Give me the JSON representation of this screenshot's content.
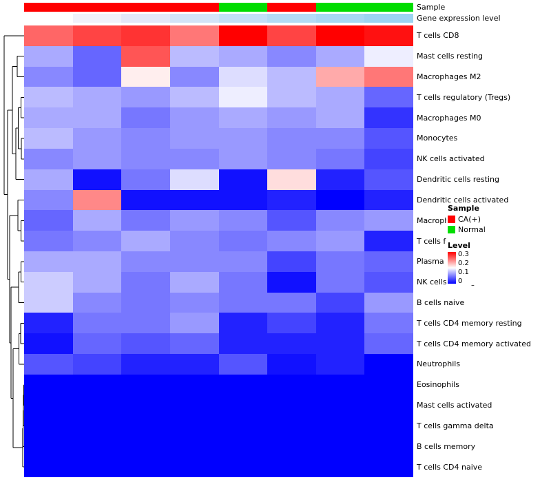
{
  "annotations": {
    "sample_label": "Sample",
    "expr_label": "Gene expression level",
    "sample_groups": [
      "CA(+)",
      "CA(+)",
      "CA(+)",
      "CA(+)",
      "Normal",
      "CA(+)",
      "Normal",
      "Normal"
    ],
    "sample_colors": {
      "CA(+)": "#FF0000",
      "Normal": "#00DD00"
    },
    "expr_colors": [
      "#FFFFFF",
      "#F1F1FA",
      "#E4E7F8",
      "#D3E4F8",
      "#C3E0F7",
      "#B3DCF6",
      "#A7D8F4",
      "#9CD4F2"
    ]
  },
  "legend": {
    "sample_title": "Sample",
    "items": [
      {
        "label": "CA(+)",
        "color": "#FF0000"
      },
      {
        "label": "Normal",
        "color": "#00DD00"
      }
    ],
    "level_title": "Level",
    "ticks": [
      "0.3",
      "0.2",
      "0.1",
      "0"
    ]
  },
  "chart_data": {
    "type": "heatmap",
    "title": "",
    "columns": 8,
    "column_groups": [
      "CA(+)",
      "CA(+)",
      "CA(+)",
      "CA(+)",
      "Normal",
      "CA(+)",
      "Normal",
      "Normal"
    ],
    "rows": [
      "T cells CD8",
      "Mast cells resting",
      "Macrophages M2",
      "T cells regulatory (Tregs)",
      "Macrophages M0",
      "Monocytes",
      "NK cells activated",
      "Dendritic cells resting",
      "Dendritic cells activated",
      "Macrophages M1",
      "T cells follicular helper",
      "Plasma cells",
      "NK cells resting",
      "B cells naive",
      "T cells CD4 memory resting",
      "T cells CD4 memory activated",
      "Neutrophils",
      "Eosinophils",
      "Mast cells activated",
      "T cells gamma delta",
      "B cells memory",
      "T cells CD4 naive"
    ],
    "values": [
      [
        0.24,
        0.26,
        0.27,
        0.23,
        0.3,
        0.26,
        0.3,
        0.29
      ],
      [
        0.1,
        0.06,
        0.25,
        0.11,
        0.1,
        0.08,
        0.1,
        0.14
      ],
      [
        0.08,
        0.06,
        0.16,
        0.08,
        0.13,
        0.11,
        0.2,
        0.23
      ],
      [
        0.11,
        0.1,
        0.09,
        0.11,
        0.14,
        0.11,
        0.1,
        0.06
      ],
      [
        0.1,
        0.1,
        0.07,
        0.09,
        0.1,
        0.09,
        0.1,
        0.03
      ],
      [
        0.11,
        0.09,
        0.08,
        0.09,
        0.09,
        0.08,
        0.08,
        0.05
      ],
      [
        0.08,
        0.09,
        0.08,
        0.08,
        0.09,
        0.08,
        0.07,
        0.04
      ],
      [
        0.1,
        0.01,
        0.07,
        0.13,
        0.01,
        0.17,
        0.02,
        0.05
      ],
      [
        0.08,
        0.22,
        0.01,
        0.01,
        0.01,
        0.02,
        0.0,
        0.02
      ],
      [
        0.06,
        0.1,
        0.07,
        0.09,
        0.08,
        0.05,
        0.08,
        0.09
      ],
      [
        0.07,
        0.08,
        0.1,
        0.08,
        0.07,
        0.08,
        0.09,
        0.02
      ],
      [
        0.1,
        0.1,
        0.08,
        0.08,
        0.08,
        0.04,
        0.07,
        0.06
      ],
      [
        0.12,
        0.1,
        0.07,
        0.1,
        0.07,
        0.01,
        0.07,
        0.05
      ],
      [
        0.12,
        0.08,
        0.07,
        0.08,
        0.07,
        0.07,
        0.04,
        0.09
      ],
      [
        0.02,
        0.07,
        0.07,
        0.09,
        0.02,
        0.04,
        0.02,
        0.07
      ],
      [
        0.01,
        0.06,
        0.05,
        0.06,
        0.02,
        0.02,
        0.02,
        0.06
      ],
      [
        0.05,
        0.04,
        0.02,
        0.02,
        0.05,
        0.01,
        0.02,
        0.0
      ],
      [
        0.0,
        0.0,
        0.0,
        0.0,
        0.0,
        0.0,
        0.0,
        0.0
      ],
      [
        0.0,
        0.0,
        0.0,
        0.0,
        0.0,
        0.0,
        0.0,
        0.0
      ],
      [
        0.0,
        0.0,
        0.0,
        0.0,
        0.0,
        0.0,
        0.0,
        0.0
      ],
      [
        0.0,
        0.0,
        0.0,
        0.0,
        0.0,
        0.0,
        0.0,
        0.0
      ],
      [
        0.0,
        0.0,
        0.0,
        0.0,
        0.0,
        0.0,
        0.0,
        0.0
      ]
    ],
    "color_scale": {
      "min": 0,
      "mid": 0.15,
      "max": 0.3,
      "min_color": "#0000FF",
      "mid_color": "#FFFFFF",
      "max_color": "#FF0000"
    },
    "legend_position": "right",
    "dendrogram_merges": [
      [
        "mA",
        18,
        19,
        32.5
      ],
      [
        "mB",
        "mA",
        20,
        32
      ],
      [
        "mC",
        "mB",
        21,
        31.5
      ],
      [
        "mD",
        "mC",
        22,
        31
      ],
      [
        "mE",
        15,
        16,
        28
      ],
      [
        "mF",
        "mE",
        17,
        25.5
      ],
      [
        "mG",
        "mF",
        "mD",
        17
      ],
      [
        "mH",
        12,
        13,
        28.5
      ],
      [
        "mI",
        "mH",
        14,
        25
      ],
      [
        "mJ",
        "mI",
        "mG",
        14
      ],
      [
        "mK",
        10,
        11,
        28.5
      ],
      [
        "mL",
        9,
        "mK",
        24
      ],
      [
        "mM",
        "mL",
        "mJ",
        12
      ],
      [
        "mN",
        4,
        5,
        28.5
      ],
      [
        "mO",
        6,
        7,
        29
      ],
      [
        "mP",
        "mN",
        "mO",
        24.5
      ],
      [
        "mQ",
        "mP",
        8,
        21
      ],
      [
        "mR",
        2,
        3,
        23
      ],
      [
        "mS",
        "mR",
        "mQ",
        16
      ],
      [
        "mT",
        "mS",
        "mM",
        9
      ],
      [
        "root",
        1,
        "mT",
        4
      ]
    ]
  }
}
